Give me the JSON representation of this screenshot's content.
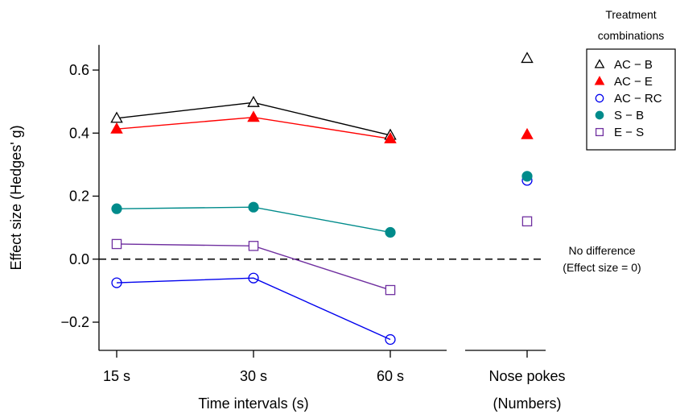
{
  "chart_data": {
    "type": "line",
    "ylabel": "Effect size (Hedges' g)",
    "xlabel": "Time intervals (s)",
    "categories": [
      "15 s",
      "30 s",
      "60 s"
    ],
    "extra_category": {
      "label": "Nose pokes",
      "sublabel": "(Numbers)"
    },
    "y_ticks": [
      -0.2,
      0.0,
      0.2,
      0.4,
      0.6
    ],
    "y_tick_labels": [
      "−0.2",
      "0.0",
      "0.2",
      "0.4",
      "0.6"
    ],
    "ylim": [
      -0.29,
      0.68
    ],
    "reference_line": {
      "value": 0,
      "label_line1": "No difference",
      "label_line2": "(Effect size = 0)"
    },
    "legend": {
      "title_line1": "Treatment",
      "title_line2": "combinations",
      "placement": "right"
    },
    "series": [
      {
        "name": "AC − B",
        "color": "#000000",
        "marker": "triangle-open",
        "values": [
          0.447,
          0.497,
          0.393
        ],
        "nose_pokes": 0.637
      },
      {
        "name": "AC − E",
        "color": "#ff0000",
        "marker": "triangle-filled",
        "values": [
          0.413,
          0.45,
          0.382
        ],
        "nose_pokes": 0.395
      },
      {
        "name": "AC − RC",
        "color": "#0000ee",
        "marker": "circle-open",
        "values": [
          -0.075,
          -0.06,
          -0.255
        ],
        "nose_pokes": 0.25
      },
      {
        "name": "S − B",
        "color": "#008b8b",
        "marker": "circle-filled",
        "values": [
          0.16,
          0.165,
          0.085
        ],
        "nose_pokes": 0.263
      },
      {
        "name": "E − S",
        "color": "#7030a0",
        "marker": "square-open",
        "values": [
          0.048,
          0.042,
          -0.098
        ],
        "nose_pokes": 0.12
      }
    ]
  }
}
